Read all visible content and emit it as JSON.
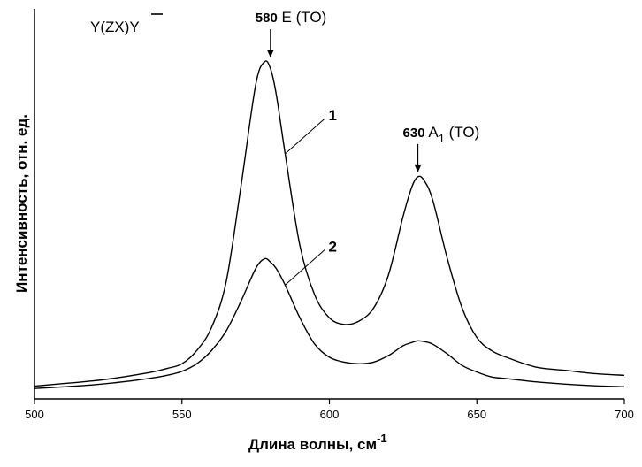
{
  "chart_data": {
    "type": "line",
    "title": "",
    "xlabel": "Длина волны, см",
    "xlabel_superscript": "-1",
    "ylabel": "Интенсивность, отн. ед.",
    "xlim": [
      500,
      700
    ],
    "ylim": [
      0,
      1
    ],
    "xticks": [
      500,
      550,
      600,
      650,
      700
    ],
    "yticks": [],
    "grid": false,
    "legend": "none",
    "geometry_label": "Y(ZX)Y",
    "annotations": [
      {
        "text_main": "580",
        "text_rest": " E (TO)",
        "sub": "",
        "x": 580,
        "y": 1.0
      },
      {
        "text_main": "630",
        "text_rest": " A",
        "sub": "1",
        "tail": "(TO)",
        "x": 630,
        "y": 0.65
      }
    ],
    "curve_labels": [
      {
        "text": "1",
        "series": 0,
        "x": 585,
        "y": 0.88
      },
      {
        "text": "2",
        "series": 1,
        "x": 587,
        "y": 0.47
      }
    ],
    "series": [
      {
        "x": [
          500,
          510,
          520,
          530,
          540,
          545,
          550,
          555,
          560,
          565,
          570,
          575,
          578,
          580,
          582,
          585,
          590,
          595,
          600,
          605,
          610,
          615,
          620,
          625,
          628,
          630,
          632,
          635,
          640,
          645,
          650,
          655,
          660,
          670,
          680,
          690,
          700
        ],
        "y": [
          0.012,
          0.02,
          0.028,
          0.04,
          0.055,
          0.066,
          0.08,
          0.12,
          0.19,
          0.33,
          0.62,
          0.93,
          1.0,
          0.98,
          0.9,
          0.72,
          0.44,
          0.29,
          0.22,
          0.2,
          0.21,
          0.25,
          0.35,
          0.53,
          0.62,
          0.65,
          0.64,
          0.58,
          0.4,
          0.25,
          0.16,
          0.12,
          0.1,
          0.07,
          0.06,
          0.05,
          0.045
        ]
      },
      {
        "x": [
          500,
          510,
          520,
          530,
          540,
          545,
          550,
          555,
          560,
          565,
          570,
          575,
          578,
          580,
          582,
          585,
          590,
          595,
          600,
          605,
          610,
          615,
          620,
          625,
          628,
          630,
          632,
          635,
          640,
          645,
          650,
          655,
          660,
          670,
          680,
          690,
          700
        ],
        "y": [
          0.005,
          0.01,
          0.016,
          0.025,
          0.037,
          0.045,
          0.057,
          0.08,
          0.12,
          0.18,
          0.27,
          0.37,
          0.4,
          0.39,
          0.37,
          0.32,
          0.22,
          0.14,
          0.1,
          0.085,
          0.08,
          0.085,
          0.105,
          0.135,
          0.145,
          0.15,
          0.148,
          0.14,
          0.11,
          0.075,
          0.055,
          0.04,
          0.035,
          0.025,
          0.018,
          0.013,
          0.01
        ]
      }
    ]
  }
}
